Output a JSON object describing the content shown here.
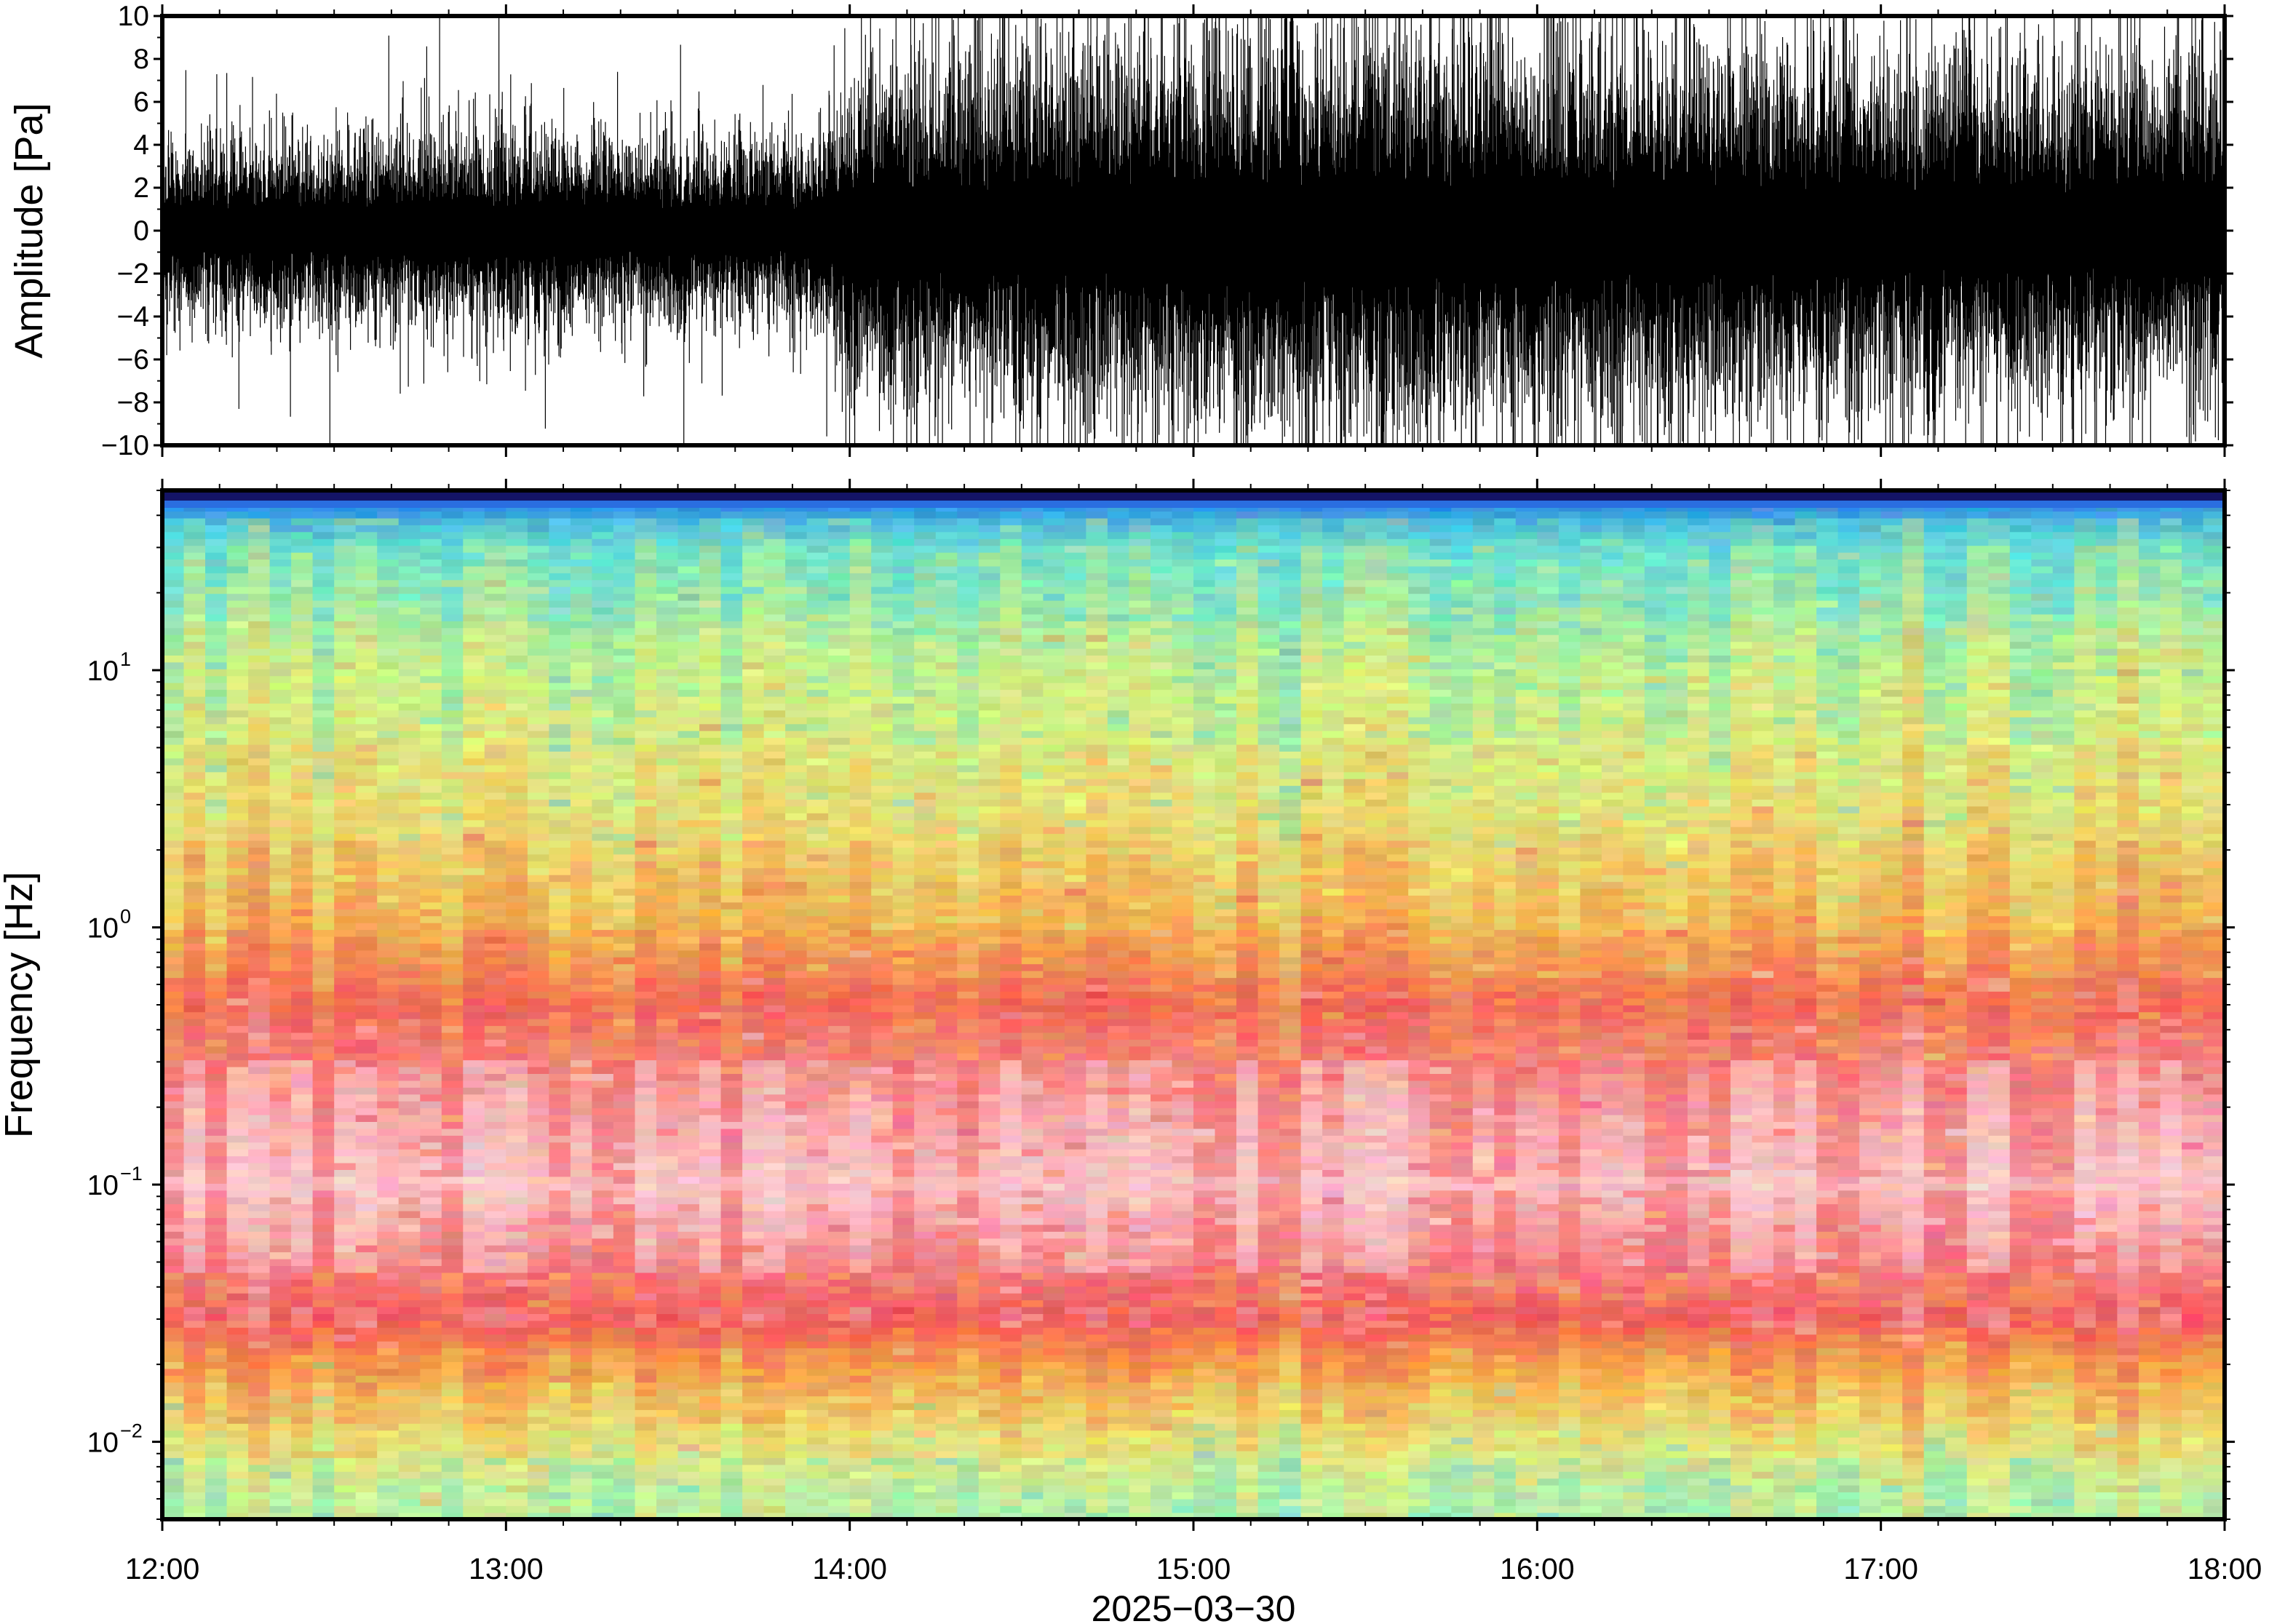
{
  "chart_data": [
    {
      "type": "line",
      "title": "",
      "xlabel": "",
      "ylabel": "Amplitude [Pa]",
      "ylim": [
        -10,
        10
      ],
      "xlim": [
        "12:00",
        "18:00"
      ],
      "yticks": [
        "10",
        "8",
        "6",
        "4",
        "2",
        "0",
        "−2",
        "−4",
        "−6",
        "−8",
        "−10"
      ],
      "ytick_values": [
        10,
        8,
        6,
        4,
        2,
        0,
        -2,
        -4,
        -6,
        -8,
        -10
      ],
      "envelope": {
        "description_times": [
          "12:00",
          "12:30",
          "13:00",
          "13:30",
          "13:55",
          "14:00",
          "14:30",
          "15:00",
          "15:30",
          "16:00",
          "16:30",
          "17:00",
          "17:30",
          "18:00"
        ],
        "typical_amplitude": [
          2.5,
          2.6,
          2.8,
          2.5,
          2.6,
          4.5,
          5.0,
          5.6,
          5.8,
          5.4,
          5.2,
          5.0,
          4.8,
          4.6
        ]
      },
      "color": "#000000",
      "grid": false
    },
    {
      "type": "heatmap",
      "title": "",
      "xlabel": "2025−03−30",
      "ylabel": "Frequency [Hz]",
      "yscale": "log",
      "ylim": [
        0.005,
        50
      ],
      "xlim": [
        "12:00",
        "18:00"
      ],
      "xticks": [
        "12:00",
        "13:00",
        "14:00",
        "15:00",
        "16:00",
        "17:00",
        "18:00"
      ],
      "yticks": [
        {
          "value": 10,
          "base": "10",
          "exp": "1"
        },
        {
          "value": 1,
          "base": "10",
          "exp": "0"
        },
        {
          "value": 0.1,
          "base": "10",
          "exp": "−1"
        },
        {
          "value": 0.01,
          "base": "10",
          "exp": "−2"
        }
      ],
      "colormap": [
        "#1a1a7a",
        "#2a6ee0",
        "#55d8e8",
        "#7fe6b8",
        "#c8f08a",
        "#e8ec7a",
        "#f2c45a",
        "#f59a4a",
        "#f06a58",
        "#f2585c",
        "#f7a2a6",
        "#fbd6d6"
      ],
      "band_description": [
        {
          "freq_hz": 50,
          "color": "#1a1a7a"
        },
        {
          "freq_hz": 45,
          "color": "#2a8ce8"
        },
        {
          "freq_hz": 30,
          "color": "#6fe0c8"
        },
        {
          "freq_hz": 10,
          "color": "#c8f08a"
        },
        {
          "freq_hz": 3,
          "color": "#e4e27a"
        },
        {
          "freq_hz": 1,
          "color": "#f2b050"
        },
        {
          "freq_hz": 0.5,
          "color": "#f06a58"
        },
        {
          "freq_hz": 0.2,
          "color": "#f5a0a2"
        },
        {
          "freq_hz": 0.1,
          "color": "#f8c0c2"
        },
        {
          "freq_hz": 0.05,
          "color": "#f3888c"
        },
        {
          "freq_hz": 0.03,
          "color": "#f0585c"
        },
        {
          "freq_hz": 0.02,
          "color": "#f5a048"
        },
        {
          "freq_hz": 0.01,
          "color": "#e8e27a"
        },
        {
          "freq_hz": 0.006,
          "color": "#b8f0a8"
        }
      ],
      "grid": false
    }
  ]
}
